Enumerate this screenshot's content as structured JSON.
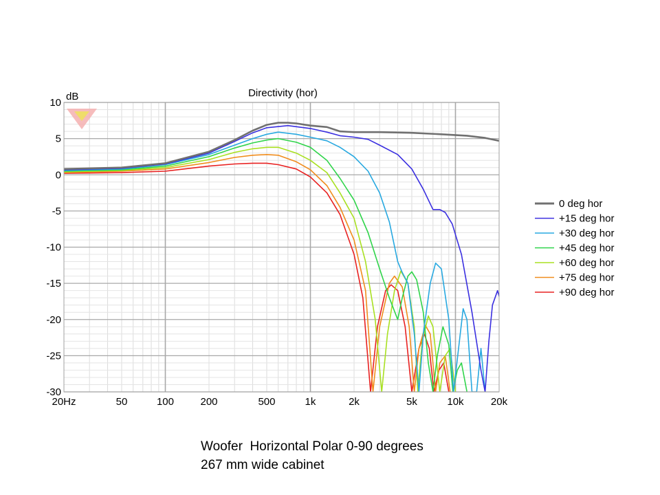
{
  "chart_data": {
    "type": "line",
    "title": "Directivity (hor)",
    "ylabel": "dB",
    "x_scale": "log",
    "xlim": [
      20,
      20000
    ],
    "ylim": [
      -30,
      10
    ],
    "x_ticks": [
      {
        "value": 20,
        "label": "20Hz"
      },
      {
        "value": 50,
        "label": "50"
      },
      {
        "value": 100,
        "label": "100"
      },
      {
        "value": 200,
        "label": "200"
      },
      {
        "value": 500,
        "label": "500"
      },
      {
        "value": 1000,
        "label": "1k"
      },
      {
        "value": 2000,
        "label": "2k"
      },
      {
        "value": 5000,
        "label": "5k"
      },
      {
        "value": 10000,
        "label": "10k"
      },
      {
        "value": 20000,
        "label": "20k"
      }
    ],
    "y_ticks": [
      10,
      5,
      0,
      -5,
      -10,
      -15,
      -20,
      -25,
      -30
    ],
    "grid": true,
    "legend_position": "right",
    "series": [
      {
        "name": "0 deg hor",
        "color": "#707070",
        "points": [
          [
            20,
            0.8
          ],
          [
            50,
            1.0
          ],
          [
            100,
            1.6
          ],
          [
            200,
            3.2
          ],
          [
            300,
            4.8
          ],
          [
            400,
            6.1
          ],
          [
            500,
            6.9
          ],
          [
            600,
            7.2
          ],
          [
            700,
            7.2
          ],
          [
            800,
            7.1
          ],
          [
            1000,
            6.8
          ],
          [
            1300,
            6.6
          ],
          [
            1600,
            6.0
          ],
          [
            2000,
            5.9
          ],
          [
            3000,
            5.9
          ],
          [
            5000,
            5.8
          ],
          [
            8000,
            5.6
          ],
          [
            12000,
            5.4
          ],
          [
            16000,
            5.1
          ],
          [
            20000,
            4.7
          ]
        ]
      },
      {
        "name": "+15 deg hor",
        "color": "#3a2fe0",
        "points": [
          [
            20,
            0.7
          ],
          [
            50,
            0.9
          ],
          [
            100,
            1.5
          ],
          [
            200,
            3.0
          ],
          [
            300,
            4.6
          ],
          [
            400,
            5.8
          ],
          [
            500,
            6.5
          ],
          [
            700,
            6.8
          ],
          [
            1000,
            6.4
          ],
          [
            1300,
            5.9
          ],
          [
            1600,
            5.4
          ],
          [
            2000,
            5.2
          ],
          [
            2500,
            4.9
          ],
          [
            3000,
            4.1
          ],
          [
            4000,
            2.8
          ],
          [
            5000,
            0.8
          ],
          [
            6000,
            -2.0
          ],
          [
            7000,
            -4.8
          ],
          [
            7800,
            -4.8
          ],
          [
            8500,
            -5.2
          ],
          [
            9500,
            -6.8
          ],
          [
            11000,
            -11
          ],
          [
            13000,
            -19
          ],
          [
            15000,
            -27
          ],
          [
            16000,
            -30
          ],
          [
            17000,
            -23
          ],
          [
            18000,
            -18
          ],
          [
            19500,
            -16
          ],
          [
            20000,
            -16.8
          ]
        ]
      },
      {
        "name": "+30 deg hor",
        "color": "#27a8e0",
        "points": [
          [
            20,
            0.6
          ],
          [
            50,
            0.8
          ],
          [
            100,
            1.4
          ],
          [
            200,
            2.8
          ],
          [
            300,
            4.1
          ],
          [
            400,
            5.0
          ],
          [
            500,
            5.6
          ],
          [
            600,
            5.9
          ],
          [
            800,
            5.6
          ],
          [
            1000,
            5.2
          ],
          [
            1300,
            4.7
          ],
          [
            1600,
            3.8
          ],
          [
            2000,
            2.5
          ],
          [
            2500,
            0.5
          ],
          [
            3000,
            -2.5
          ],
          [
            3500,
            -6.5
          ],
          [
            4000,
            -12
          ],
          [
            4300,
            -13.5
          ],
          [
            4700,
            -15
          ],
          [
            5200,
            -22
          ],
          [
            5600,
            -30
          ],
          [
            6000,
            -22
          ],
          [
            6700,
            -15
          ],
          [
            7300,
            -12.2
          ],
          [
            8000,
            -13
          ],
          [
            9000,
            -20
          ],
          [
            9700,
            -30
          ],
          [
            10500,
            -24
          ],
          [
            11300,
            -18.5
          ],
          [
            12000,
            -20
          ],
          [
            13000,
            -30
          ],
          [
            14000,
            -30
          ],
          [
            15000,
            -24
          ],
          [
            16000,
            -30
          ]
        ]
      },
      {
        "name": "+45 deg hor",
        "color": "#2fd44a",
        "points": [
          [
            20,
            0.5
          ],
          [
            50,
            0.7
          ],
          [
            100,
            1.2
          ],
          [
            200,
            2.5
          ],
          [
            300,
            3.7
          ],
          [
            400,
            4.4
          ],
          [
            500,
            4.8
          ],
          [
            600,
            5.0
          ],
          [
            800,
            4.5
          ],
          [
            1000,
            3.8
          ],
          [
            1300,
            2.0
          ],
          [
            1600,
            -0.5
          ],
          [
            2000,
            -3.5
          ],
          [
            2500,
            -8
          ],
          [
            3000,
            -13
          ],
          [
            3500,
            -17
          ],
          [
            4000,
            -20
          ],
          [
            4300,
            -17
          ],
          [
            4700,
            -14
          ],
          [
            5000,
            -13.4
          ],
          [
            5400,
            -14.5
          ],
          [
            6000,
            -19
          ],
          [
            6500,
            -26
          ],
          [
            7000,
            -30
          ],
          [
            7500,
            -25
          ],
          [
            8200,
            -21
          ],
          [
            9000,
            -23.5
          ],
          [
            9600,
            -30
          ],
          [
            10300,
            -27
          ],
          [
            11000,
            -26
          ],
          [
            12000,
            -30
          ]
        ]
      },
      {
        "name": "+60 deg hor",
        "color": "#a8e020",
        "points": [
          [
            20,
            0.4
          ],
          [
            50,
            0.6
          ],
          [
            100,
            1.0
          ],
          [
            200,
            2.1
          ],
          [
            300,
            3.1
          ],
          [
            400,
            3.6
          ],
          [
            500,
            3.8
          ],
          [
            600,
            3.8
          ],
          [
            800,
            3.0
          ],
          [
            1000,
            2.0
          ],
          [
            1300,
            0.3
          ],
          [
            1600,
            -2.5
          ],
          [
            2000,
            -6
          ],
          [
            2400,
            -12
          ],
          [
            2800,
            -20
          ],
          [
            3100,
            -30
          ],
          [
            3400,
            -22
          ],
          [
            3800,
            -16
          ],
          [
            4200,
            -13.3
          ],
          [
            4700,
            -15
          ],
          [
            5200,
            -21
          ],
          [
            5500,
            -30
          ],
          [
            5900,
            -23
          ],
          [
            6500,
            -19.5
          ],
          [
            7000,
            -21
          ],
          [
            7800,
            -30
          ],
          [
            8500,
            -25
          ],
          [
            9200,
            -24
          ],
          [
            10000,
            -30
          ]
        ]
      },
      {
        "name": "+75 deg hor",
        "color": "#f08c1c",
        "points": [
          [
            20,
            0.3
          ],
          [
            50,
            0.5
          ],
          [
            100,
            0.8
          ],
          [
            200,
            1.7
          ],
          [
            300,
            2.4
          ],
          [
            400,
            2.7
          ],
          [
            500,
            2.8
          ],
          [
            600,
            2.7
          ],
          [
            800,
            1.8
          ],
          [
            1000,
            0.7
          ],
          [
            1300,
            -1.5
          ],
          [
            1600,
            -4.5
          ],
          [
            2000,
            -9
          ],
          [
            2400,
            -16
          ],
          [
            2700,
            -30
          ],
          [
            3000,
            -21
          ],
          [
            3500,
            -15
          ],
          [
            3800,
            -14
          ],
          [
            4300,
            -15.5
          ],
          [
            4800,
            -21
          ],
          [
            5200,
            -30
          ],
          [
            5600,
            -24
          ],
          [
            6200,
            -20.8
          ],
          [
            6700,
            -22
          ],
          [
            7300,
            -30
          ],
          [
            7800,
            -26
          ],
          [
            8500,
            -25
          ],
          [
            9200,
            -30
          ]
        ]
      },
      {
        "name": "+90 deg hor",
        "color": "#e82020",
        "points": [
          [
            20,
            0.2
          ],
          [
            50,
            0.3
          ],
          [
            100,
            0.5
          ],
          [
            200,
            1.2
          ],
          [
            300,
            1.5
          ],
          [
            400,
            1.6
          ],
          [
            500,
            1.6
          ],
          [
            600,
            1.4
          ],
          [
            800,
            0.8
          ],
          [
            1000,
            -0.3
          ],
          [
            1300,
            -2.5
          ],
          [
            1600,
            -5.5
          ],
          [
            2000,
            -11
          ],
          [
            2300,
            -17
          ],
          [
            2600,
            -30
          ],
          [
            2900,
            -21
          ],
          [
            3300,
            -16
          ],
          [
            3600,
            -15.2
          ],
          [
            4000,
            -16
          ],
          [
            4500,
            -21
          ],
          [
            5000,
            -30
          ],
          [
            5600,
            -24
          ],
          [
            6100,
            -22
          ],
          [
            6600,
            -24
          ],
          [
            7100,
            -30
          ],
          [
            7700,
            -27
          ],
          [
            8300,
            -26
          ],
          [
            9000,
            -30
          ]
        ]
      }
    ]
  },
  "caption": {
    "line1": "Woofer  Horizontal Polar 0-90 degrees",
    "line2": "267 mm wide cabinet"
  },
  "logo": {
    "name": "red-triangle-logo",
    "color": "#f0a0a0",
    "accent": "#e8e000"
  }
}
